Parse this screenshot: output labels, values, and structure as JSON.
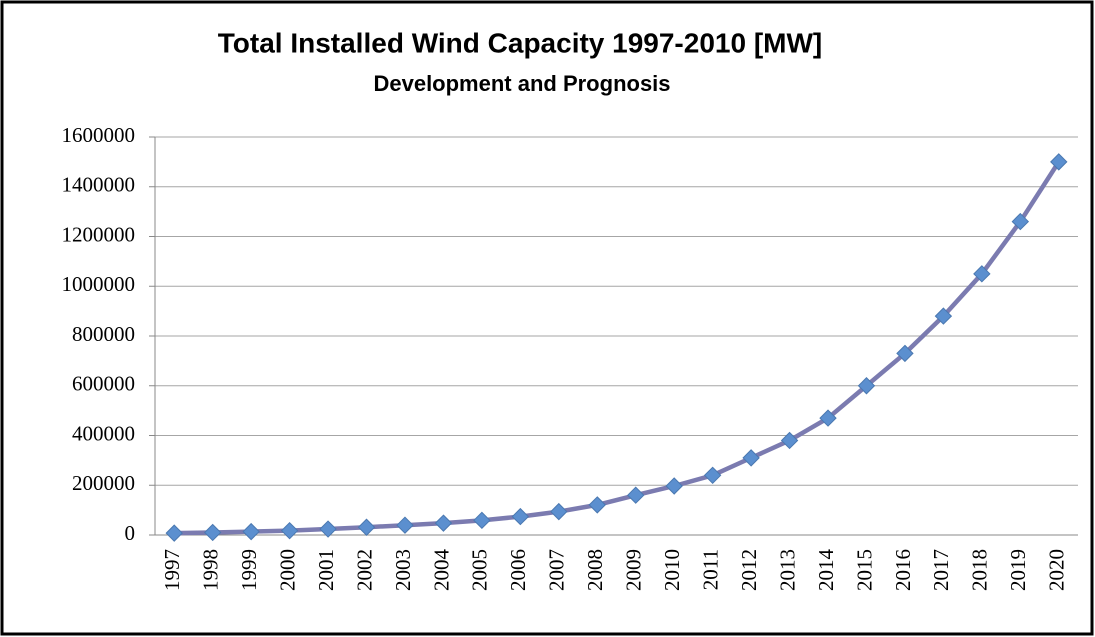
{
  "chart_data": {
    "type": "line",
    "title": "Total Installed Wind Capacity 1997-2010 [MW]",
    "subtitle": "Development and Prognosis",
    "categories": [
      "1997",
      "1998",
      "1999",
      "2000",
      "2001",
      "2002",
      "2003",
      "2004",
      "2005",
      "2006",
      "2007",
      "2008",
      "2009",
      "2010",
      "2011",
      "2012",
      "2013",
      "2014",
      "2015",
      "2016",
      "2017",
      "2018",
      "2019",
      "2020"
    ],
    "series": [
      {
        "name": "Total Installed Wind Capacity",
        "color": "#7b7bb0",
        "marker_color": "#5b8fcf",
        "values": [
          7600,
          10200,
          13600,
          17400,
          23900,
          31100,
          39400,
          47600,
          59000,
          74000,
          94000,
          121000,
          160000,
          197000,
          240000,
          310000,
          380000,
          470000,
          600000,
          730000,
          880000,
          1050000,
          1260000,
          1500000
        ]
      }
    ],
    "ylim": [
      0,
      1600000
    ],
    "yticks": [
      0,
      200000,
      400000,
      600000,
      800000,
      1000000,
      1200000,
      1400000,
      1600000
    ],
    "grid": true
  }
}
